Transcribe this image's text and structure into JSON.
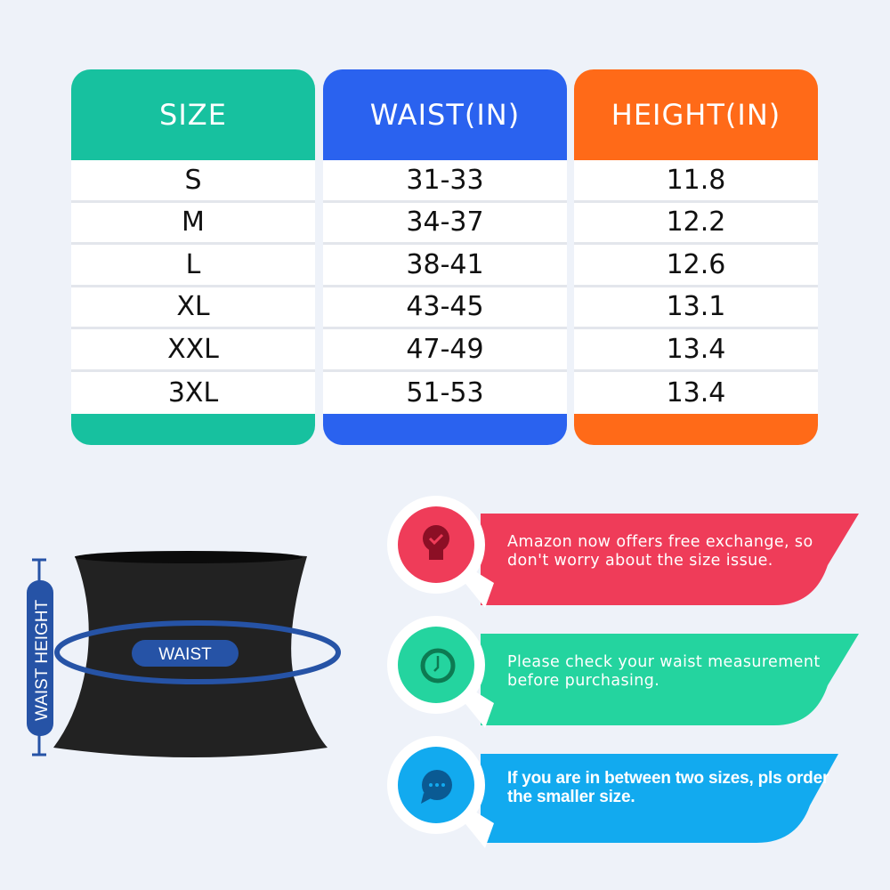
{
  "table": {
    "columns": [
      {
        "header": "SIZE",
        "color": "#17c19f",
        "values": [
          "S",
          "M",
          "L",
          "XL",
          "XXL",
          "3XL"
        ]
      },
      {
        "header": "WAIST(IN)",
        "color": "#2a62ef",
        "values": [
          "31-33",
          "34-37",
          "38-41",
          "43-45",
          "47-49",
          "51-53"
        ]
      },
      {
        "header": "HEIGHT(IN)",
        "color": "#ff6a18",
        "values": [
          "11.8",
          "12.2",
          "12.6",
          "13.1",
          "13.4",
          "13.4"
        ]
      }
    ]
  },
  "diagram": {
    "waist_label": "WAIST",
    "height_label": "WAIST HEIGHT",
    "accent": "#2653a6"
  },
  "tips": [
    {
      "icon": "lightbulb-check-icon",
      "color": "#ef3c59",
      "text": "Amazon now offers free exchange, so don't worry about the size issue."
    },
    {
      "icon": "clock-icon",
      "color": "#24d49f",
      "text": "Please check your waist measurement before purchasing."
    },
    {
      "icon": "chat-bubble-icon",
      "color": "#12aaef",
      "text": "If you are in between two sizes, pls order the smaller size."
    }
  ]
}
